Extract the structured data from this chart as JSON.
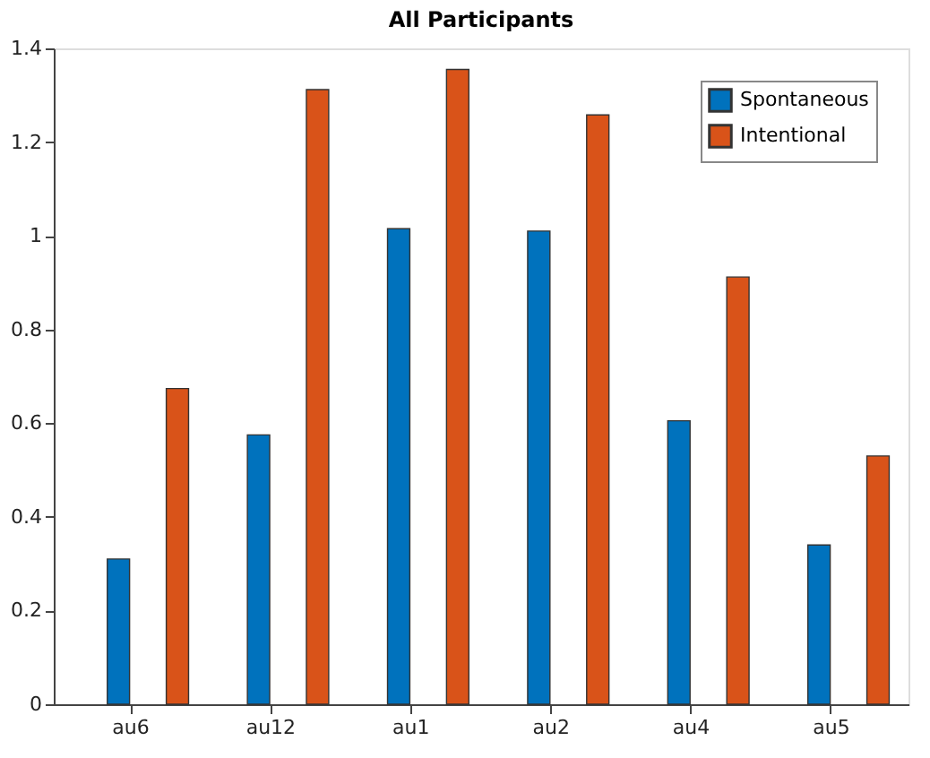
{
  "chart_data": {
    "type": "bar",
    "title": "All Participants",
    "categories": [
      "au6",
      "au12",
      "au1",
      "au2",
      "au4",
      "au5"
    ],
    "series": [
      {
        "name": "Spontaneous",
        "color": "#0072bd",
        "values": [
          0.31,
          0.575,
          1.015,
          1.01,
          0.605,
          0.34
        ]
      },
      {
        "name": "Intentional",
        "color": "#d95319",
        "values": [
          0.674,
          1.312,
          1.355,
          1.258,
          0.912,
          0.53
        ]
      }
    ],
    "ylim": [
      0,
      1.4
    ],
    "yticks": [
      0,
      0.2,
      0.4,
      0.6,
      0.8,
      1,
      1.2,
      1.4
    ],
    "grid": false,
    "legend": "top right"
  }
}
